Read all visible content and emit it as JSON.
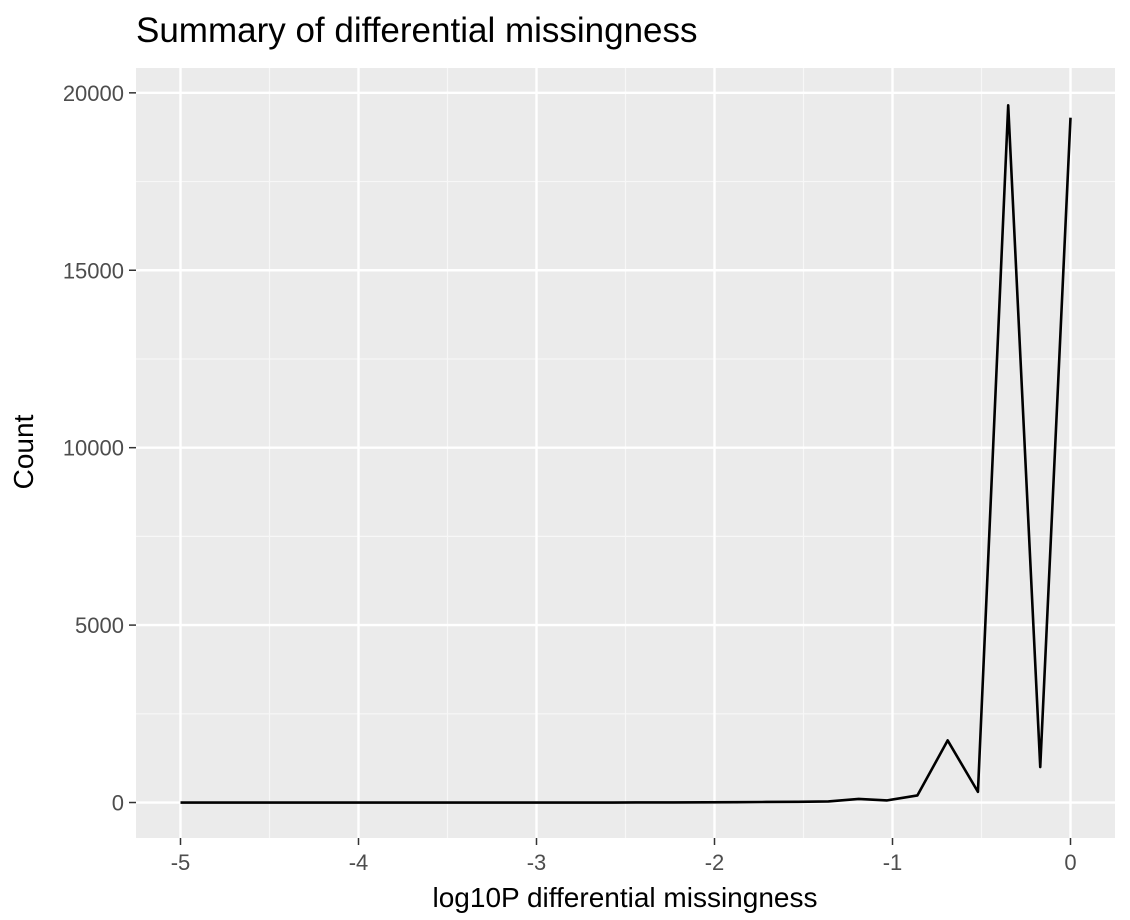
{
  "chart_data": {
    "type": "line",
    "title": "Summary of differential missingness",
    "xlabel": "log10P differential missingness",
    "ylabel": "Count",
    "xlim": [
      -5.25,
      0.25
    ],
    "ylim": [
      -1000,
      20700
    ],
    "x_ticks": [
      -5,
      -4,
      -3,
      -2,
      -1,
      0
    ],
    "x_tick_labels": [
      "-5",
      "-4",
      "-3",
      "-2",
      "-1",
      "0"
    ],
    "y_ticks": [
      0,
      5000,
      10000,
      15000,
      20000
    ],
    "y_tick_labels": [
      "0",
      "5000",
      "10000",
      "15000",
      "20000"
    ],
    "grid": true,
    "legend": "none",
    "colors": {
      "panel_background": "#ebebeb",
      "grid_major": "#ffffff",
      "grid_minor": "#f7f7f7",
      "line": "#000000",
      "tick_text": "#4d4d4d",
      "tick_mark": "#333333"
    },
    "series": [
      {
        "x": [
          -5.0,
          -4.83,
          -4.65,
          -4.48,
          -4.31,
          -4.13,
          -3.96,
          -3.79,
          -3.61,
          -3.44,
          -3.27,
          -3.09,
          -2.92,
          -2.75,
          -2.57,
          -2.4,
          -2.23,
          -2.05,
          -1.88,
          -1.71,
          -1.53,
          -1.36,
          -1.19,
          -1.03,
          -0.86,
          -0.69,
          -0.52,
          -0.35,
          -0.17,
          0.0
        ],
        "values": [
          0,
          0,
          0,
          0,
          0,
          0,
          0,
          0,
          0,
          0,
          0,
          0,
          0,
          0,
          0,
          2,
          3,
          5,
          10,
          15,
          20,
          30,
          100,
          60,
          200,
          1750,
          300,
          19650,
          1000,
          19300
        ]
      }
    ]
  }
}
